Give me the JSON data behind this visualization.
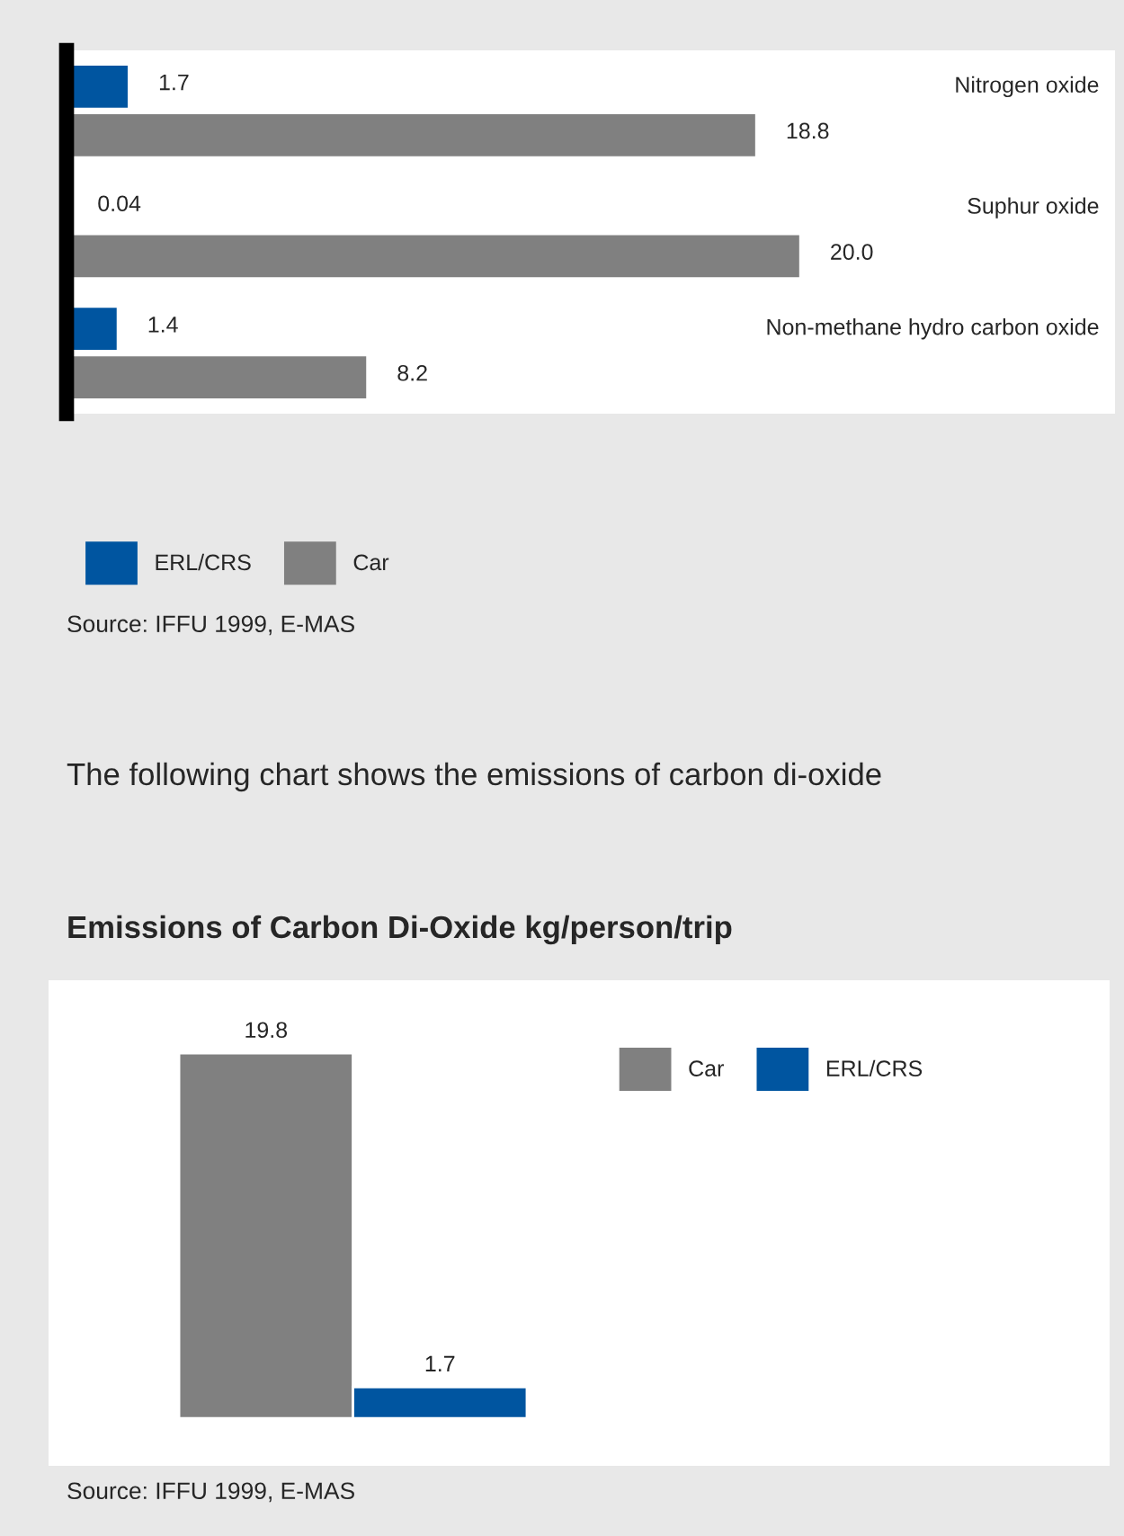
{
  "chart_data": [
    {
      "type": "bar",
      "orientation": "horizontal",
      "categories": [
        "Nitrogen oxide",
        "Suphur oxide",
        "Non-methane hydro carbon oxide"
      ],
      "series": [
        {
          "name": "ERL/CRS",
          "color": "#0055a0",
          "values": [
            1.7,
            0.04,
            1.4
          ],
          "value_labels": [
            "1.7",
            "0.04",
            "1.4"
          ]
        },
        {
          "name": "Car",
          "color": "#808080",
          "values": [
            18.8,
            20.0,
            8.2
          ],
          "value_labels": [
            "18.8",
            "20.0",
            "8.2"
          ]
        }
      ],
      "legend": "bottom",
      "annotations": [
        "Source: IFFU 1999, E-MAS"
      ]
    },
    {
      "type": "bar",
      "title": "Emissions of Carbon Di-Oxide kg/person/trip",
      "categories": [
        null
      ],
      "series": [
        {
          "name": "Car",
          "color": "#808080",
          "values": [
            19.8
          ]
        },
        {
          "name": "ERL/CRS",
          "color": "#0055a0",
          "values": [
            1.7
          ]
        }
      ],
      "data_labels": true,
      "legend": "top right",
      "annotations": [
        "The following chart shows the emissions of carbon di-oxide",
        "Source: IFFU 1999, E-MAS"
      ]
    }
  ]
}
